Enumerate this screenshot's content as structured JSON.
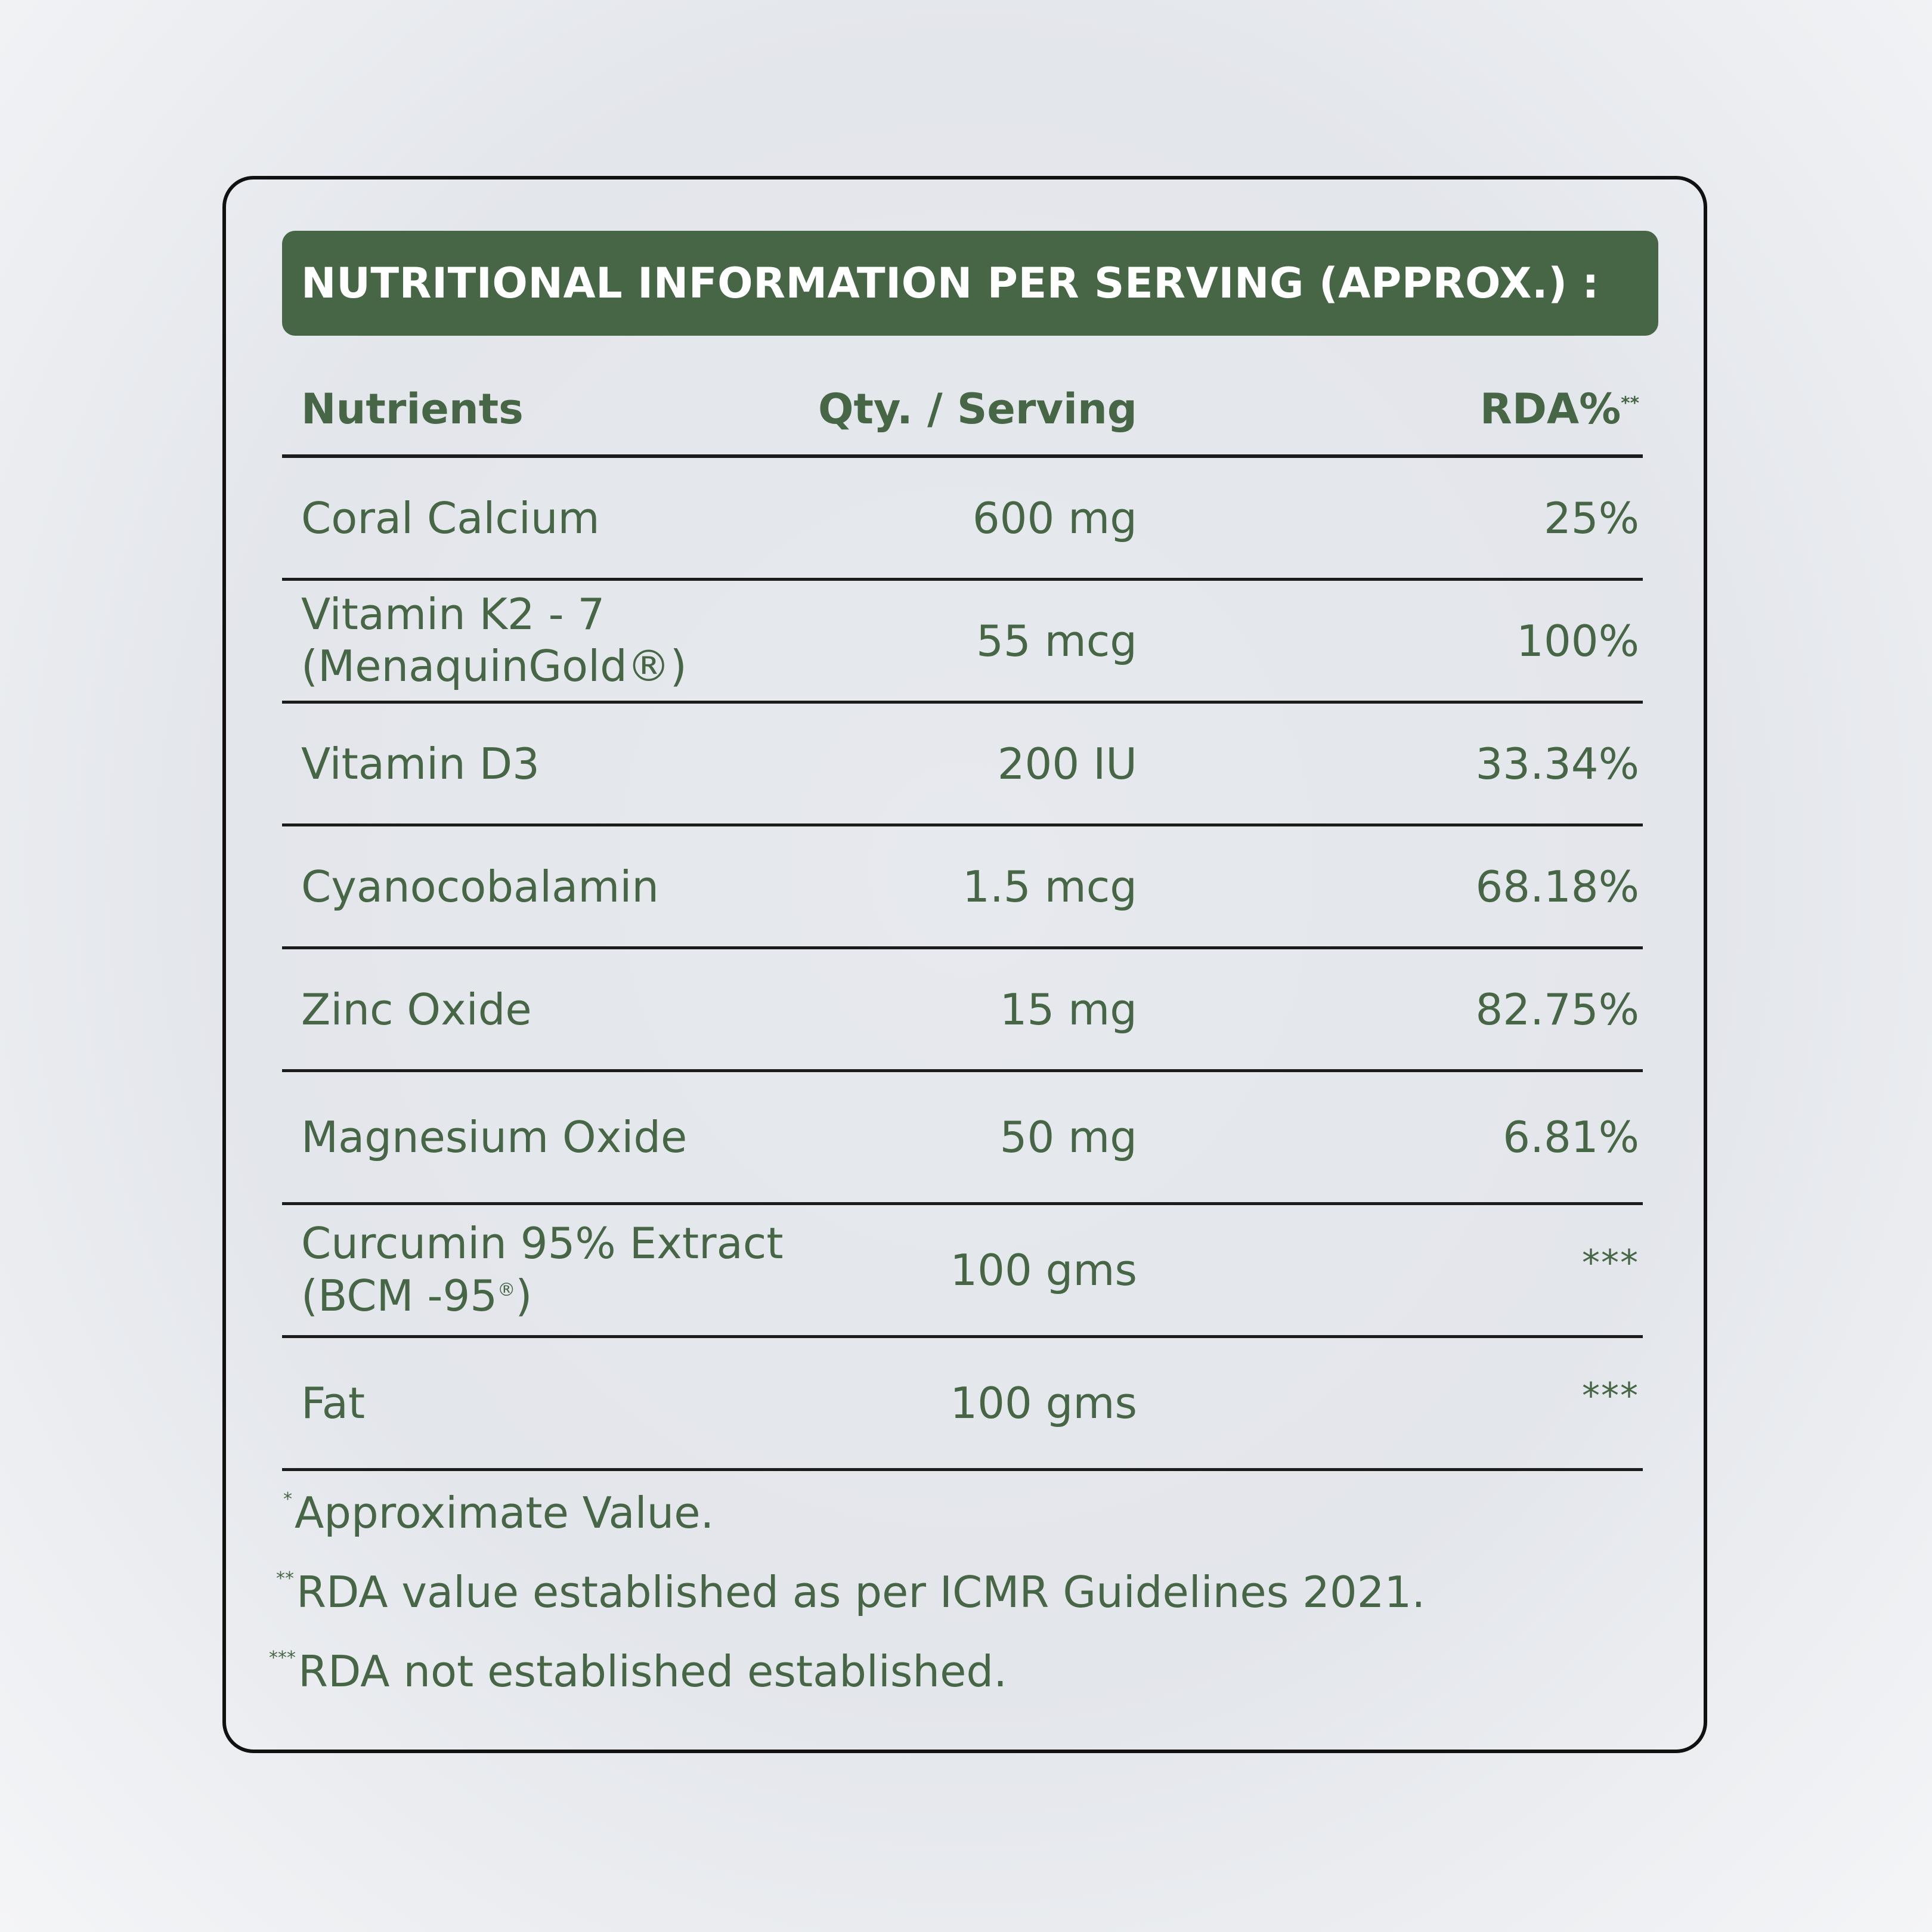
{
  "header": {
    "title": "NUTRITIONAL INFORMATION PER SERVING (APPROX.) :"
  },
  "table": {
    "columns": {
      "nutrients": "Nutrients",
      "qty": "Qty. / Serving",
      "rda": "RDA%",
      "rda_mark": "**"
    },
    "rows": [
      {
        "line1": "Coral Calcium",
        "line2": "",
        "reg": "",
        "close": "",
        "qty": "600 mg",
        "rda": "25%"
      },
      {
        "line1": "Vitamin K2 - 7",
        "line2": "(MenaquinGold",
        "reg": "®",
        "close": ")",
        "qty": "55 mcg",
        "rda": "100%"
      },
      {
        "line1": "Vitamin D3",
        "line2": "",
        "reg": "",
        "close": "",
        "qty": "200 IU",
        "rda": "33.34%"
      },
      {
        "line1": "Cyanocobalamin",
        "line2": "",
        "reg": "",
        "close": "",
        "qty": "1.5 mcg",
        "rda": "68.18%"
      },
      {
        "line1": "Zinc Oxide",
        "line2": "",
        "reg": "",
        "close": "",
        "qty": "15 mg",
        "rda": "82.75%"
      },
      {
        "line1": "Magnesium Oxide",
        "line2": "",
        "reg": "",
        "close": "",
        "qty": "50 mg",
        "rda": "6.81%"
      },
      {
        "line1": "Curcumin 95% Extract",
        "line2": "(BCM -95",
        "reg": "®",
        "close": ")",
        "qty": "100 gms",
        "rda": "***"
      },
      {
        "line1": "Fat",
        "line2": "",
        "reg": "",
        "close": "",
        "qty": "100 gms",
        "rda": "***"
      }
    ]
  },
  "footnotes": [
    {
      "mark": "*",
      "text": "Approximate Value."
    },
    {
      "mark": "**",
      "text": "RDA value established as per ICMR Guidelines 2021."
    },
    {
      "mark": "***",
      "text": "RDA not established established."
    }
  ]
}
